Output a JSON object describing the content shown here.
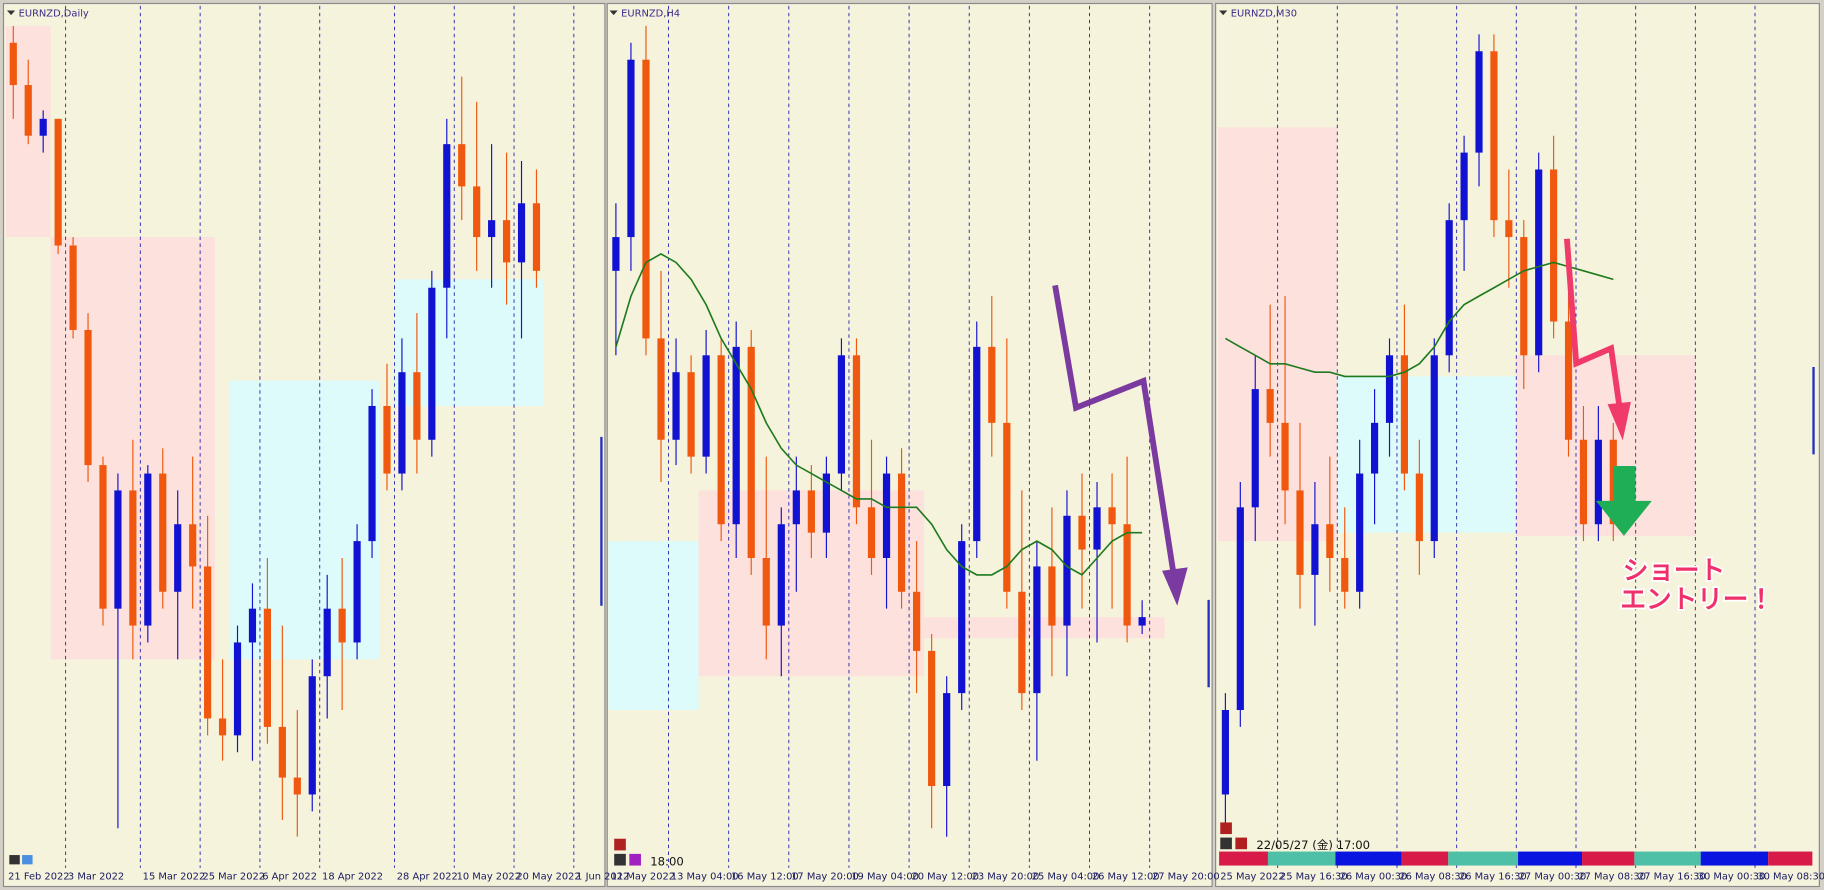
{
  "chart_data": [
    {
      "type": "candlestick",
      "title": "EURNZD,Daily",
      "ylim": [
        0,
        100
      ],
      "grid": true,
      "bull_color": "#1212d2",
      "bear_color": "#f0580f",
      "categories": [
        "21 Feb 2022",
        null,
        null,
        null,
        "3 Mar 2022",
        null,
        null,
        null,
        null,
        "15 Mar 2022",
        null,
        null,
        null,
        "25 Mar 2022",
        null,
        null,
        null,
        "6 Apr 2022",
        null,
        null,
        null,
        "18 Apr 2022",
        null,
        null,
        null,
        null,
        "28 Apr 2022",
        null,
        null,
        null,
        "10 May 2022",
        null,
        null,
        null,
        "20 May 2022",
        null,
        null,
        null,
        "1 Jun 2022",
        null
      ],
      "ohlc": [
        [
          97,
          99,
          88,
          92
        ],
        [
          92,
          95,
          85,
          86
        ],
        [
          86,
          89,
          84,
          88
        ],
        [
          88,
          88,
          72,
          73
        ],
        [
          73,
          74,
          62,
          63
        ],
        [
          63,
          65,
          45,
          47
        ],
        [
          47,
          48,
          28,
          30
        ],
        [
          30,
          46,
          4,
          44
        ],
        [
          44,
          50,
          24,
          28
        ],
        [
          28,
          47,
          26,
          46
        ],
        [
          46,
          49,
          30,
          32
        ],
        [
          32,
          44,
          24,
          40
        ],
        [
          40,
          48,
          30,
          35
        ],
        [
          35,
          41,
          15,
          17
        ],
        [
          17,
          24,
          12,
          15
        ],
        [
          15,
          28,
          13,
          26
        ],
        [
          26,
          33,
          12,
          30
        ],
        [
          30,
          36,
          14,
          16
        ],
        [
          16,
          28,
          5,
          10
        ],
        [
          10,
          18,
          3,
          8
        ],
        [
          8,
          24,
          6,
          22
        ],
        [
          22,
          34,
          17,
          30
        ],
        [
          30,
          36,
          18,
          26
        ],
        [
          26,
          40,
          24,
          38
        ],
        [
          38,
          56,
          36,
          54
        ],
        [
          54,
          59,
          44,
          46
        ],
        [
          46,
          62,
          44,
          58
        ],
        [
          58,
          65,
          46,
          50
        ],
        [
          50,
          70,
          48,
          68
        ],
        [
          68,
          88,
          62,
          85
        ],
        [
          85,
          93,
          76,
          80
        ],
        [
          80,
          90,
          70,
          74
        ],
        [
          74,
          85,
          68,
          76
        ],
        [
          76,
          84,
          66,
          71
        ],
        [
          71,
          83,
          62,
          78
        ],
        [
          78,
          82,
          68,
          70
        ],
        null,
        null,
        null,
        null
      ],
      "zones": [
        {
          "start": 0,
          "end": 3,
          "low": 74,
          "high": 99,
          "color": "#fde1dd"
        },
        {
          "start": 3,
          "end": 14,
          "low": 24,
          "high": 74,
          "color": "#fde1dd"
        },
        {
          "start": 15,
          "end": 25,
          "low": 24,
          "high": 57,
          "color": "#dcfbfa"
        },
        {
          "start": 26,
          "end": 36,
          "low": 54,
          "high": 69,
          "color": "#dcfbfa"
        }
      ]
    },
    {
      "type": "candlestick",
      "title": "EURNZD,H4",
      "ylim": [
        0,
        100
      ],
      "grid": true,
      "time_label": "18:00",
      "bull_color": "#1212d2",
      "bear_color": "#f0580f",
      "ma_color": "#1e7a1e",
      "categories": [
        "11 May 2022",
        null,
        null,
        null,
        "13 May 04:00",
        null,
        null,
        null,
        "16 May 12:00",
        null,
        null,
        null,
        "17 May 20:00",
        null,
        null,
        null,
        "19 May 04:00",
        null,
        null,
        null,
        "20 May 12:00",
        null,
        null,
        null,
        "23 May 20:00",
        null,
        null,
        null,
        "25 May 04:00",
        null,
        null,
        null,
        "26 May 12:00",
        null,
        null,
        null,
        "27 May 20:00",
        null,
        null,
        null
      ],
      "ohlc": [
        [
          70,
          78,
          60,
          74
        ],
        [
          74,
          97,
          70,
          95
        ],
        [
          95,
          99,
          60,
          62
        ],
        [
          62,
          70,
          45,
          50
        ],
        [
          50,
          62,
          47,
          58
        ],
        [
          58,
          60,
          46,
          48
        ],
        [
          48,
          63,
          46,
          60
        ],
        [
          60,
          62,
          38,
          40
        ],
        [
          40,
          64,
          36,
          61
        ],
        [
          61,
          63,
          34,
          36
        ],
        [
          36,
          48,
          24,
          28
        ],
        [
          28,
          42,
          22,
          40
        ],
        [
          40,
          48,
          32,
          44
        ],
        [
          44,
          47,
          36,
          39
        ],
        [
          39,
          48,
          36,
          46
        ],
        [
          46,
          62,
          44,
          60
        ],
        [
          60,
          62,
          40,
          42
        ],
        [
          42,
          50,
          34,
          36
        ],
        [
          36,
          48,
          30,
          46
        ],
        [
          46,
          49,
          30,
          32
        ],
        [
          32,
          38,
          20,
          25
        ],
        [
          25,
          27,
          4,
          9
        ],
        [
          9,
          22,
          3,
          20
        ],
        [
          20,
          40,
          18,
          38
        ],
        [
          38,
          64,
          36,
          61
        ],
        [
          61,
          67,
          48,
          52
        ],
        [
          52,
          62,
          30,
          32
        ],
        [
          32,
          44,
          18,
          20
        ],
        [
          20,
          38,
          12,
          35
        ],
        [
          35,
          42,
          22,
          28
        ],
        [
          28,
          44,
          22,
          41
        ],
        [
          41,
          46,
          30,
          37
        ],
        [
          37,
          45,
          26,
          42
        ],
        [
          42,
          46,
          30,
          40
        ],
        [
          40,
          48,
          26,
          28
        ],
        [
          28,
          31,
          27,
          29
        ],
        null,
        null,
        null,
        null
      ],
      "ma": [
        61,
        67,
        71,
        72,
        71,
        69,
        66,
        62,
        59,
        56,
        52,
        49,
        47,
        46,
        45,
        44,
        43,
        43,
        42,
        42,
        42,
        40,
        37,
        35,
        34,
        34,
        35,
        37,
        38,
        37,
        35,
        34,
        36,
        38,
        39,
        39,
        null,
        null,
        null,
        null
      ],
      "zones": [
        {
          "start": 0,
          "end": 6,
          "low": 18,
          "high": 38,
          "color": "#dcfbfa"
        },
        {
          "start": 6,
          "end": 21,
          "low": 22,
          "high": 44,
          "color": "#fde1dd"
        },
        {
          "start": 21,
          "end": 37,
          "low": 26.5,
          "high": 29,
          "color": "#fde1dd"
        }
      ]
    },
    {
      "type": "candlestick",
      "title": "EURNZD,M30",
      "ylim": [
        0,
        100
      ],
      "grid": true,
      "time_label": "22/05/27 (金) 17:00",
      "note": [
        "ショート",
        "エントリー！"
      ],
      "bull_color": "#1212d2",
      "bear_color": "#f0580f",
      "ma_color": "#1e7a1e",
      "categories": [
        "25 May 2022",
        null,
        null,
        null,
        "25 May 16:30",
        null,
        null,
        null,
        "26 May 00:30",
        null,
        null,
        null,
        "26 May 08:30",
        null,
        null,
        null,
        "26 May 16:30",
        null,
        null,
        null,
        "27 May 00:30",
        null,
        null,
        null,
        "27 May 08:30",
        null,
        null,
        null,
        "27 May 16:30",
        null,
        null,
        null,
        "30 May 00:30",
        null,
        null,
        null,
        "30 May 08:30",
        null,
        null,
        null
      ],
      "ohlc": [
        [
          8,
          20,
          4,
          18
        ],
        [
          18,
          45,
          16,
          42
        ],
        [
          42,
          60,
          38,
          56
        ],
        [
          56,
          66,
          48,
          52
        ],
        [
          52,
          67,
          40,
          44
        ],
        [
          44,
          52,
          30,
          34
        ],
        [
          34,
          45,
          28,
          40
        ],
        [
          40,
          48,
          32,
          36
        ],
        [
          36,
          42,
          30,
          32
        ],
        [
          32,
          50,
          30,
          46
        ],
        [
          46,
          56,
          40,
          52
        ],
        [
          52,
          62,
          48,
          60
        ],
        [
          60,
          66,
          44,
          46
        ],
        [
          46,
          50,
          34,
          38
        ],
        [
          38,
          62,
          36,
          60
        ],
        [
          60,
          78,
          58,
          76
        ],
        [
          76,
          86,
          70,
          84
        ],
        [
          84,
          98,
          80,
          96
        ],
        [
          96,
          98,
          74,
          76
        ],
        [
          76,
          82,
          68,
          74
        ],
        [
          74,
          76,
          56,
          60
        ],
        [
          60,
          84,
          58,
          82
        ],
        [
          82,
          86,
          62,
          64
        ],
        [
          64,
          70,
          48,
          50
        ],
        [
          50,
          54,
          38,
          40
        ],
        [
          40,
          54,
          38,
          50
        ],
        [
          50,
          52,
          38,
          40
        ],
        null,
        null,
        null,
        null,
        null,
        null,
        null,
        null,
        null,
        null,
        null,
        null,
        null
      ],
      "ma": [
        62,
        61,
        60,
        59,
        59,
        58.5,
        58,
        58,
        57.5,
        57.5,
        57.5,
        57.5,
        58,
        59,
        61,
        64,
        66,
        67,
        68,
        69,
        70,
        70.5,
        71,
        70.5,
        70,
        69.5,
        69,
        null,
        null,
        null,
        null,
        null,
        null,
        null,
        null,
        null,
        null,
        null,
        null,
        null
      ],
      "zones": [
        {
          "start": 0,
          "end": 8,
          "low": 38,
          "high": 87,
          "color": "#fde1dd"
        },
        {
          "start": 8,
          "end": 20,
          "low": 39,
          "high": 57.5,
          "color": "#dcfbfa"
        },
        {
          "start": 20,
          "end": 32,
          "low": 38.6,
          "high": 60,
          "color": "#fde1dd"
        }
      ]
    }
  ]
}
